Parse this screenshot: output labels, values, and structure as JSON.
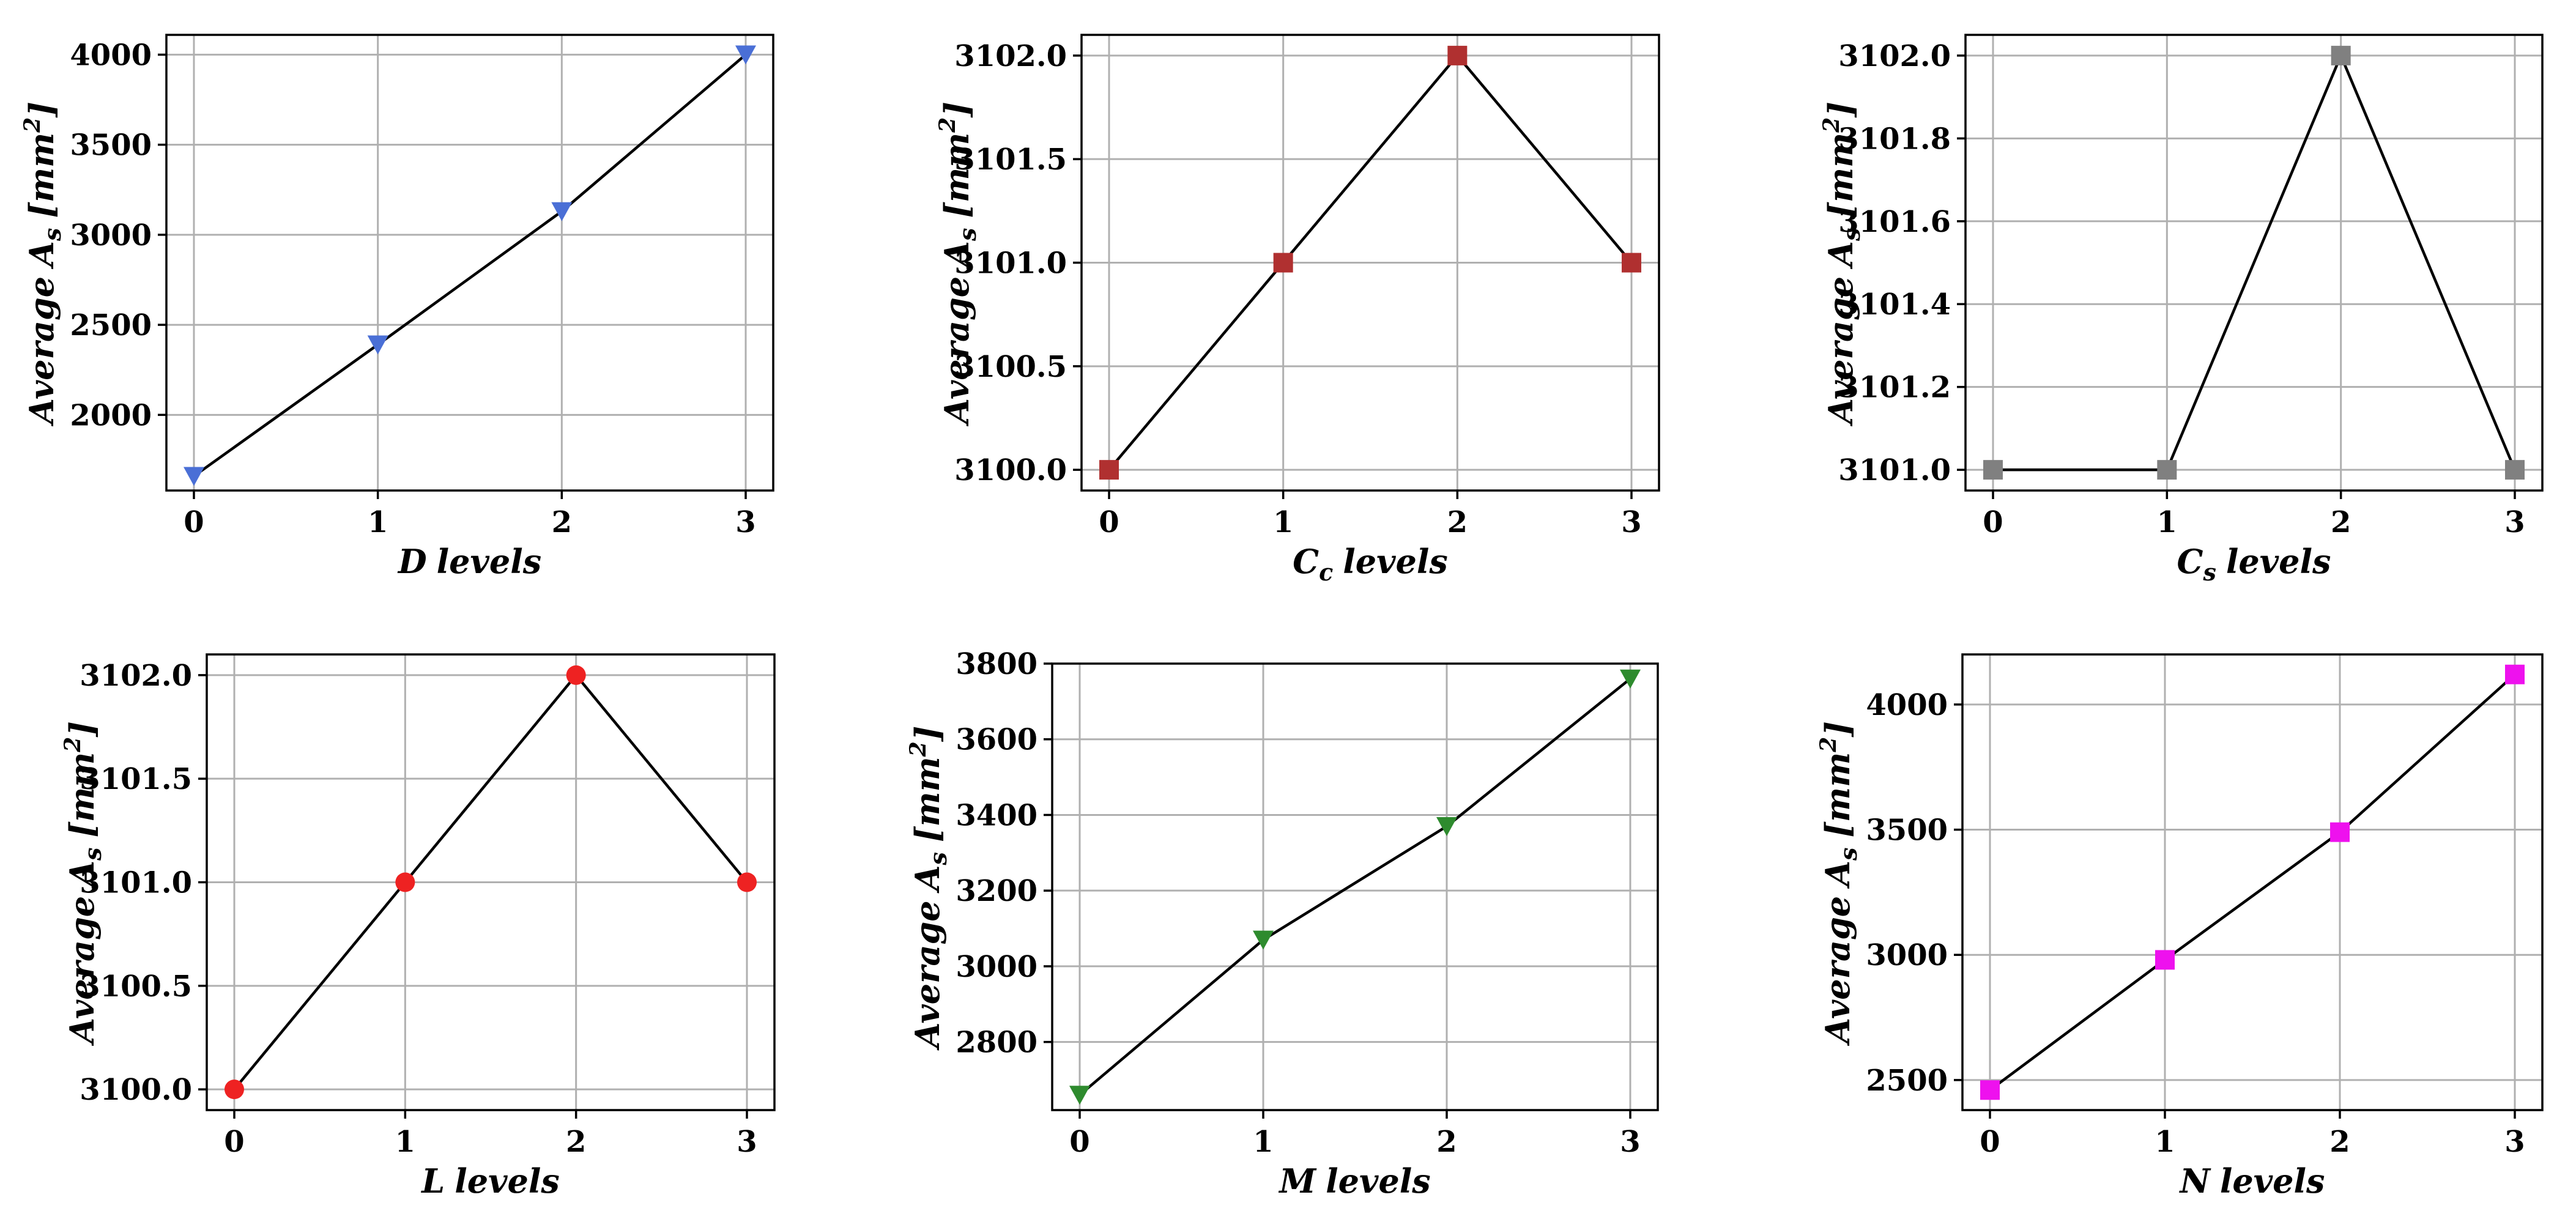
{
  "chart_data": [
    {
      "type": "line",
      "x": [
        0,
        1,
        2,
        3
      ],
      "values": [
        1660,
        2390,
        3130,
        4000
      ],
      "xticks": [
        "0",
        "1",
        "2",
        "3"
      ],
      "yticks": [
        2000,
        2500,
        3000,
        3500,
        4000
      ],
      "ytick_labels": [
        "2000",
        "2500",
        "3000",
        "3500",
        "4000"
      ],
      "ylim": [
        1580,
        4110
      ],
      "xlabel_base": "D",
      "xlabel_sub": "",
      "xlabel_suffix": "levels",
      "ylabel_prefix": "Average",
      "ylabel_var": "A",
      "ylabel_sub": "s",
      "ylabel_unit": "mm",
      "ylabel_exp": "2",
      "marker": "triangle-down",
      "marker_color": "#4a6fd6",
      "grid": true
    },
    {
      "type": "line",
      "x": [
        0,
        1,
        2,
        3
      ],
      "values": [
        3100.0,
        3101.0,
        3102.0,
        3101.0
      ],
      "xticks": [
        "0",
        "1",
        "2",
        "3"
      ],
      "yticks": [
        3100.0,
        3100.5,
        3101.0,
        3101.5,
        3102.0
      ],
      "ytick_labels": [
        "3100.0",
        "3100.5",
        "3101.0",
        "3101.5",
        "3102.0"
      ],
      "ylim": [
        3099.9,
        3102.1
      ],
      "xlabel_base": "C",
      "xlabel_sub": "c",
      "xlabel_suffix": "levels",
      "ylabel_prefix": "Average",
      "ylabel_var": "A",
      "ylabel_sub": "s",
      "ylabel_unit": "mm",
      "ylabel_exp": "2",
      "marker": "square",
      "marker_color": "#b03030",
      "grid": true
    },
    {
      "type": "line",
      "x": [
        0,
        1,
        2,
        3
      ],
      "values": [
        3101.0,
        3101.0,
        3102.0,
        3101.0
      ],
      "xticks": [
        "0",
        "1",
        "2",
        "3"
      ],
      "yticks": [
        3101.0,
        3101.2,
        3101.4,
        3101.6,
        3101.8,
        3102.0
      ],
      "ytick_labels": [
        "3101.0",
        "3101.2",
        "3101.4",
        "3101.6",
        "3101.8",
        "3102.0"
      ],
      "ylim": [
        3100.95,
        3102.05
      ],
      "xlabel_base": "C",
      "xlabel_sub": "s",
      "xlabel_suffix": "levels",
      "ylabel_prefix": "Average",
      "ylabel_var": "A",
      "ylabel_sub": "s",
      "ylabel_unit": "mm",
      "ylabel_exp": "2",
      "marker": "square",
      "marker_color": "#808080",
      "grid": true
    },
    {
      "type": "line",
      "x": [
        0,
        1,
        2,
        3
      ],
      "values": [
        3100.0,
        3101.0,
        3102.0,
        3101.0
      ],
      "xticks": [
        "0",
        "1",
        "2",
        "3"
      ],
      "yticks": [
        3100.0,
        3100.5,
        3101.0,
        3101.5,
        3102.0
      ],
      "ytick_labels": [
        "3100.0",
        "3100.5",
        "3101.0",
        "3101.5",
        "3102.0"
      ],
      "ylim": [
        3099.9,
        3102.1
      ],
      "xlabel_base": "L",
      "xlabel_sub": "",
      "xlabel_suffix": "levels",
      "ylabel_prefix": "Average",
      "ylabel_var": "A",
      "ylabel_sub": "s",
      "ylabel_unit": "mm",
      "ylabel_exp": "2",
      "marker": "circle",
      "marker_color": "#ee2222",
      "grid": true
    },
    {
      "type": "line",
      "x": [
        0,
        1,
        2,
        3
      ],
      "values": [
        2660,
        3070,
        3370,
        3760
      ],
      "xticks": [
        "0",
        "1",
        "2",
        "3"
      ],
      "yticks": [
        2800,
        3000,
        3200,
        3400,
        3600,
        3800
      ],
      "ytick_labels": [
        "2800",
        "3000",
        "3200",
        "3400",
        "3600",
        "3800"
      ],
      "ylim": [
        2620,
        3800
      ],
      "xlabel_base": "M",
      "xlabel_sub": "",
      "xlabel_suffix": "levels",
      "ylabel_prefix": "Average",
      "ylabel_var": "A",
      "ylabel_sub": "s",
      "ylabel_unit": "mm",
      "ylabel_exp": "2",
      "marker": "triangle-down",
      "marker_color": "#2e8b2e",
      "grid": true
    },
    {
      "type": "line",
      "x": [
        0,
        1,
        2,
        3
      ],
      "values": [
        2460,
        2980,
        3490,
        4120
      ],
      "xticks": [
        "0",
        "1",
        "2",
        "3"
      ],
      "yticks": [
        2500,
        3000,
        3500,
        4000
      ],
      "ytick_labels": [
        "2500",
        "3000",
        "3500",
        "4000"
      ],
      "ylim": [
        2380,
        4200
      ],
      "xlabel_base": "N",
      "xlabel_sub": "",
      "xlabel_suffix": "levels",
      "ylabel_prefix": "Average",
      "ylabel_var": "A",
      "ylabel_sub": "s",
      "ylabel_unit": "mm",
      "ylabel_exp": "2",
      "marker": "square",
      "marker_color": "#ee11ee",
      "grid": true
    }
  ]
}
